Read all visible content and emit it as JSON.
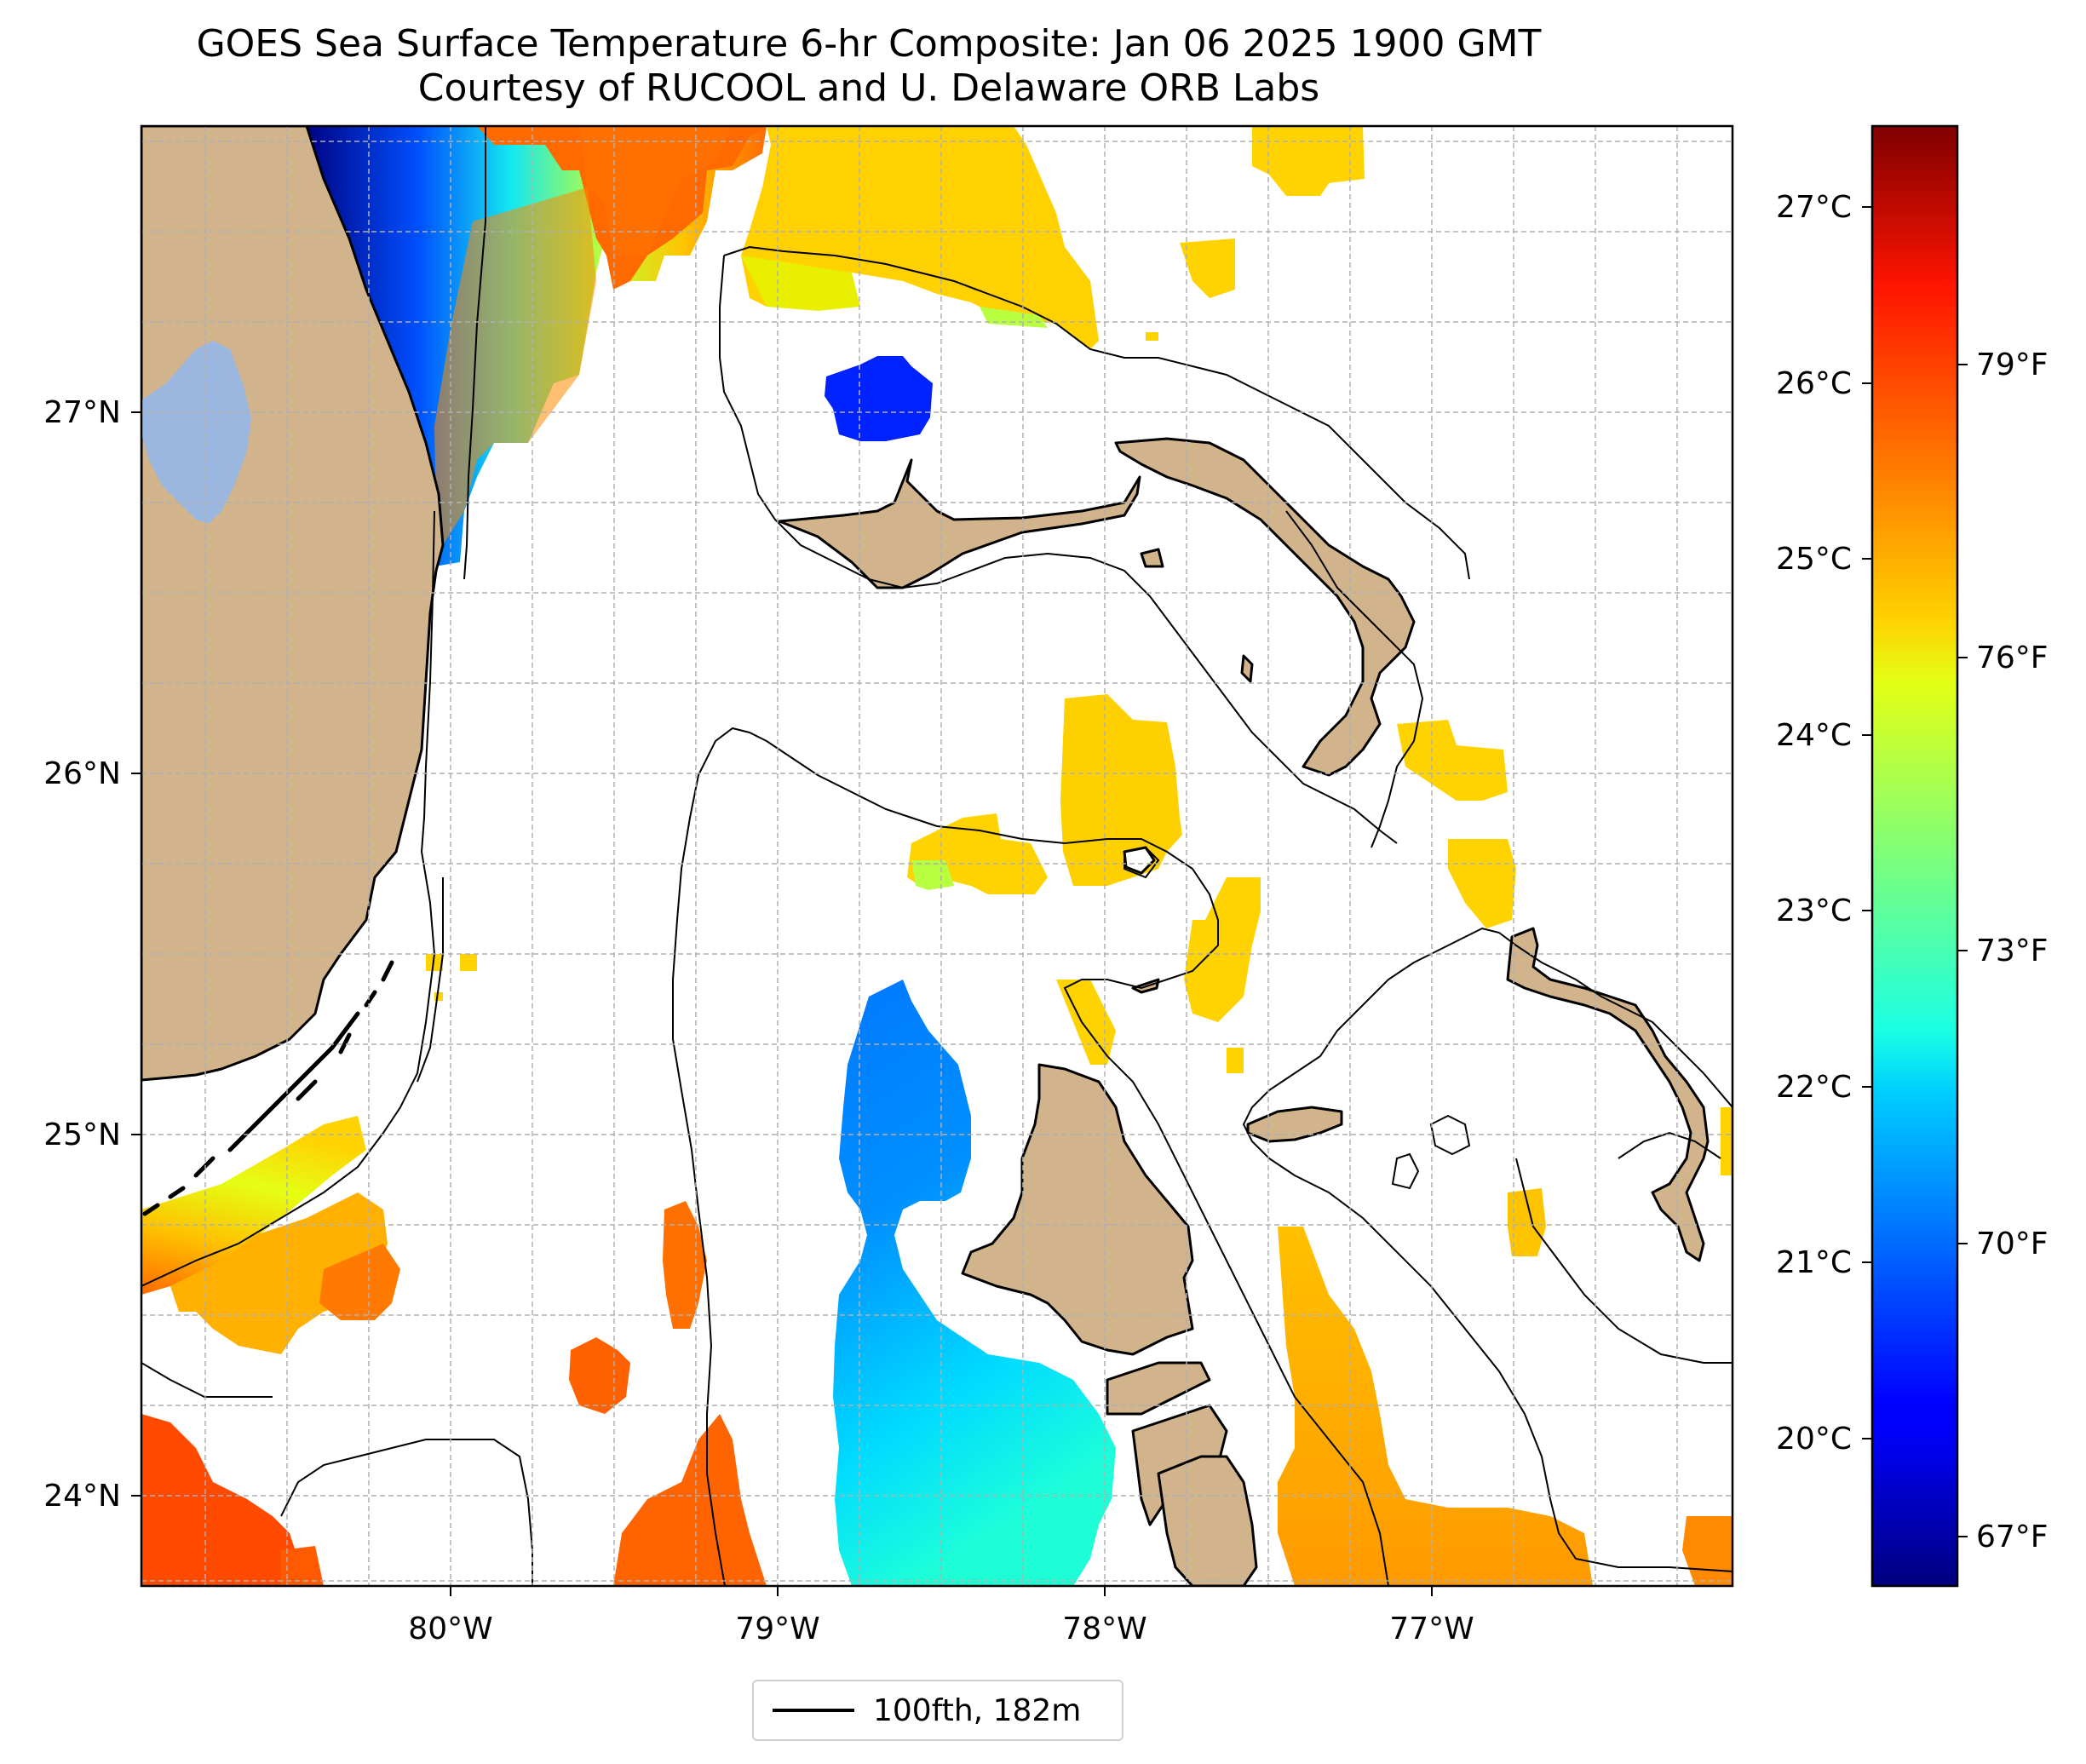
{
  "title": "GOES Sea Surface Temperature 6-hr Composite: Jan 06 2025 1900 GMT",
  "subtitle": "Courtesy of RUCOOL and U. Delaware ORB Labs",
  "map": {
    "lon_range": [
      -80.96,
      -76.1
    ],
    "lat_range": [
      23.76,
      27.8
    ],
    "lon_ticks": [
      "80°W",
      "79°W",
      "78°W",
      "77°W"
    ],
    "lat_ticks": [
      "24°N",
      "25°N",
      "26°N",
      "27°N"
    ],
    "gridlines": true,
    "land_color": "#d2b48c",
    "lake_color": "#9bb7e0",
    "contour_label": "100fth, 182m"
  },
  "colorbar": {
    "colormap": "jet",
    "range_c": [
      19.3,
      27.6
    ],
    "celsius_ticks": [
      "20°C",
      "21°C",
      "22°C",
      "23°C",
      "24°C",
      "25°C",
      "26°C",
      "27°C"
    ],
    "fahrenheit_ticks": [
      "67°F",
      "70°F",
      "73°F",
      "76°F",
      "79°F"
    ]
  },
  "legend": {
    "label": "100fth, 182m"
  }
}
